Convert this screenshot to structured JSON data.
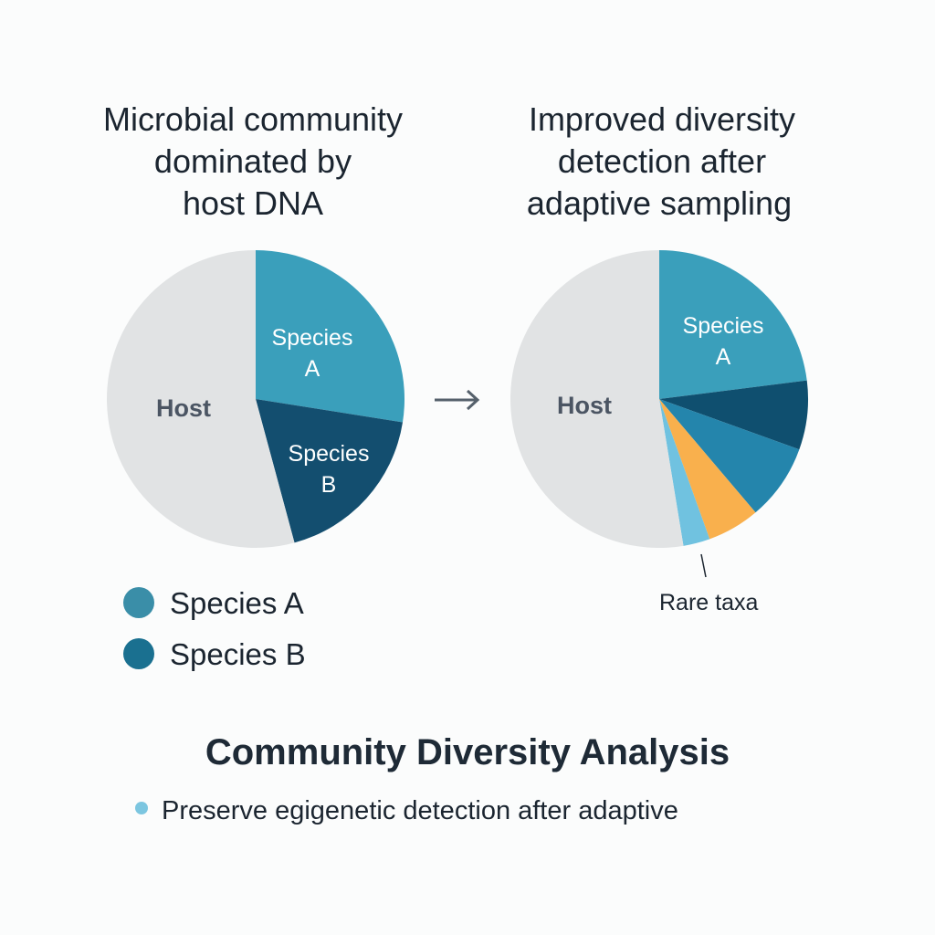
{
  "chart_data": [
    {
      "type": "pie",
      "title": "Microbial community dominated by host DNA",
      "title_lines": [
        "Microbial community",
        "dominated by",
        "host DNA"
      ],
      "slices": [
        {
          "label": "Species A",
          "value": 27.5,
          "color": "#3a9fbb"
        },
        {
          "label": "Species B",
          "value": 18.3,
          "color": "#134e6f"
        },
        {
          "label": "Host",
          "value": 54.2,
          "color": "#e1e3e4"
        }
      ],
      "legend": {
        "placement": "bottom-left",
        "items": [
          {
            "label": "Species A",
            "color": "#3a8ea8"
          },
          {
            "label": "Species B",
            "color": "#1a7090"
          }
        ]
      }
    },
    {
      "type": "pie",
      "title": "Improved diversity detection after adaptive sampling",
      "title_lines": [
        "Improved diversity",
        "detection after",
        "adaptive sampling"
      ],
      "slices": [
        {
          "label": "Species A",
          "value": 23.0,
          "color": "#3a9fbb"
        },
        {
          "label": "",
          "value": 7.5,
          "color": "#0f4f6f"
        },
        {
          "label": "",
          "value": 8.3,
          "color": "#2485ac"
        },
        {
          "label": "",
          "value": 5.7,
          "color": "#f9b04d"
        },
        {
          "label": "",
          "value": 2.9,
          "color": "#70c2e0"
        },
        {
          "label": "Host",
          "value": 52.6,
          "color": "#e1e3e4"
        }
      ],
      "annotation": "Rare taxa"
    }
  ],
  "labels": {
    "left_a": [
      "Species",
      "A"
    ],
    "left_b": [
      "Species",
      "B"
    ],
    "host": "Host",
    "right_a": [
      "Species",
      "A"
    ]
  },
  "footer": {
    "heading": "Community Diversity Analysis",
    "bullet": "Preserve egigenetic detection after adaptive",
    "bullet_color": "#7cc6e0"
  }
}
